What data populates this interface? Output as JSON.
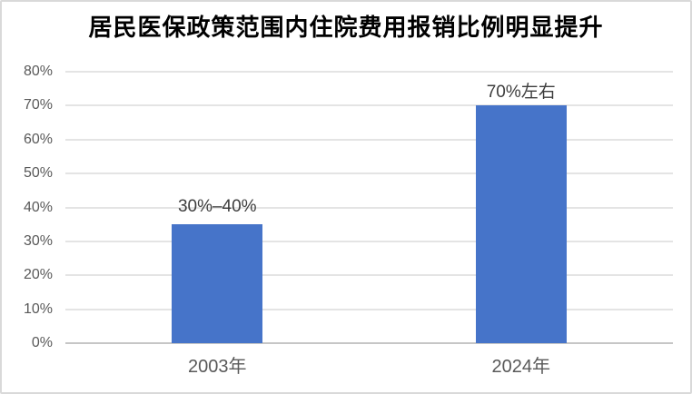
{
  "title": "居民医保政策范围内住院费用报销比例明显提升",
  "colors": {
    "bar": "#4674C9",
    "gridline": "#e4e4e4",
    "axis_line": "#c6c6c6",
    "tick_label": "#595959",
    "data_label": "#3d3d3d",
    "title": "#000000",
    "frame_border": "#d9d9d9",
    "background": "#ffffff"
  },
  "chart_data": {
    "type": "bar",
    "title": "居民医保政策范围内住院费用报销比例明显提升",
    "categories": [
      "2003年",
      "2024年"
    ],
    "values": [
      35,
      70
    ],
    "data_labels": [
      "30%–40%",
      "70%左右"
    ],
    "xlabel": "",
    "ylabel": "",
    "ylim": [
      0,
      80
    ],
    "ytick_step": 10,
    "ytick_labels": [
      "0%",
      "10%",
      "20%",
      "30%",
      "40%",
      "50%",
      "60%",
      "70%",
      "80%"
    ],
    "grid": true,
    "legend": false
  }
}
